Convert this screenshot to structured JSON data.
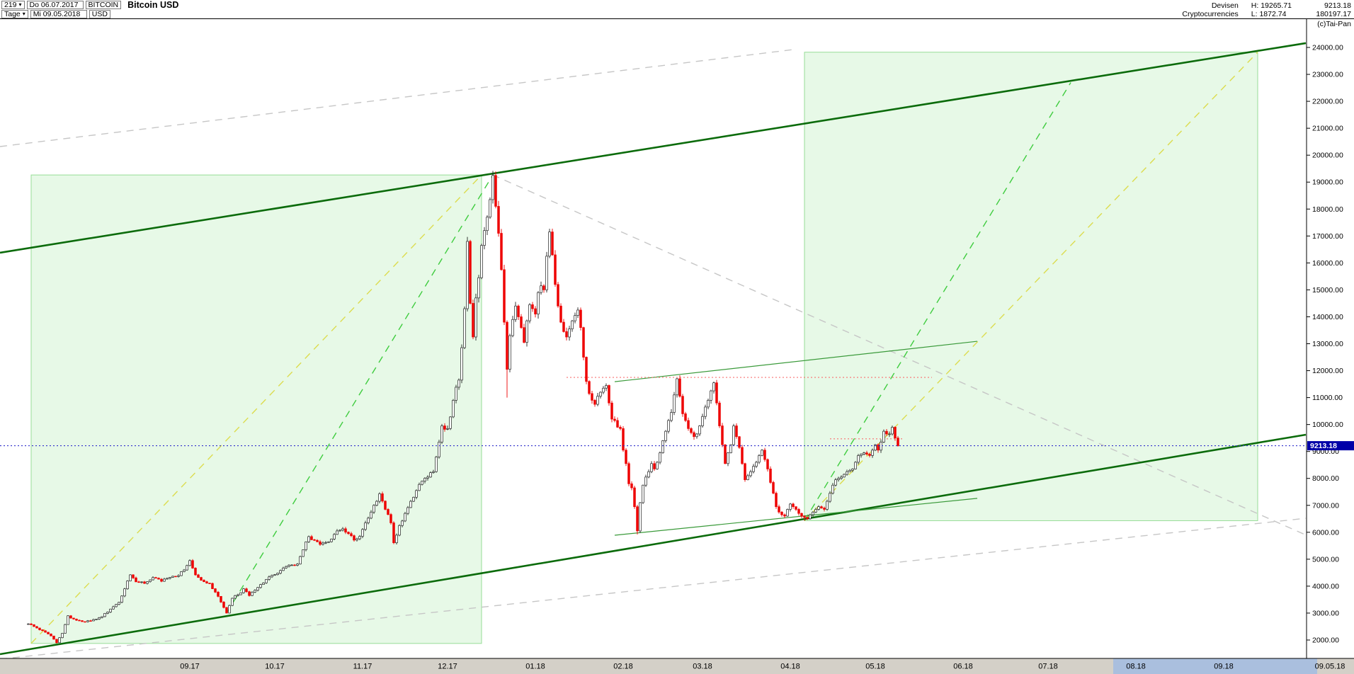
{
  "icons": {
    "dropdown_caret": "▾"
  },
  "header": {
    "bars_count": "219",
    "start_date": "Do 06.07.2017",
    "symbol": "BITCOIN",
    "title": "Bitcoin USD",
    "period": "Tage",
    "end_date": "Mi 09.05.2018",
    "currency": "USD",
    "category_line1": "Devisen",
    "category_line2": "Cryptocurrencies",
    "high_label": "H: 19265.71",
    "low_label": "L: 1872.74",
    "last_price": "9213.18",
    "secondary_value": "180197.17",
    "credit": "(c)Tai-Pan"
  },
  "time_axis": {
    "strip_color": "#d4d0c8",
    "end_label": "09.05.18",
    "highlight": {
      "from_day": 383,
      "to_day": 455,
      "color": "#aabfde"
    },
    "ticks": [
      {
        "label": "09.17",
        "day": 57
      },
      {
        "label": "10.17",
        "day": 87
      },
      {
        "label": "11.17",
        "day": 118
      },
      {
        "label": "12.17",
        "day": 148
      },
      {
        "label": "01.18",
        "day": 179
      },
      {
        "label": "02.18",
        "day": 210
      },
      {
        "label": "03.18",
        "day": 238
      },
      {
        "label": "04.18",
        "day": 269
      },
      {
        "label": "05.18",
        "day": 299
      },
      {
        "label": "06.18",
        "day": 330
      },
      {
        "label": "07.18",
        "day": 360
      },
      {
        "label": "08.18",
        "day": 391
      },
      {
        "label": "09.18",
        "day": 422
      }
    ]
  },
  "chart_data": {
    "type": "candlestick",
    "title": "Bitcoin USD",
    "period": "daily",
    "x_start_date": "06.07.2017",
    "x_end_date": "09.05.2018",
    "days": 307,
    "high": 19265.71,
    "low": 1872.74,
    "last": 9213.18,
    "last_label": "9213.18",
    "y_axis": {
      "min": 2000,
      "max": 24000,
      "step": 1000,
      "decimals": 2
    },
    "colors": {
      "up": "#ffffff",
      "up_border": "#222222",
      "down": "#ee0000",
      "channel_green": "#0b6b0b",
      "thin_green": "#3a9a3a",
      "dash_green": "#3ecc3e",
      "dash_yellow": "#dcdc4e",
      "dash_gray": "#c6c6c6",
      "dash_red": "#f87070",
      "last_price_line": "#3030cc",
      "price_tag_bg": "#0000a8",
      "box_fill": "rgba(170,235,170,0.28)",
      "box_border": "#97dd97"
    },
    "keypoints": [
      [
        0,
        2600
      ],
      [
        2,
        2500
      ],
      [
        4,
        2380
      ],
      [
        6,
        2290
      ],
      [
        8,
        2150
      ],
      [
        10,
        1900
      ],
      [
        12,
        2250
      ],
      [
        14,
        2900
      ],
      [
        16,
        2780
      ],
      [
        18,
        2720
      ],
      [
        20,
        2680
      ],
      [
        23,
        2760
      ],
      [
        26,
        2870
      ],
      [
        29,
        3150
      ],
      [
        32,
        3400
      ],
      [
        34,
        3900
      ],
      [
        36,
        4420
      ],
      [
        38,
        4160
      ],
      [
        41,
        4100
      ],
      [
        44,
        4320
      ],
      [
        47,
        4180
      ],
      [
        50,
        4330
      ],
      [
        53,
        4390
      ],
      [
        55,
        4600
      ],
      [
        57,
        4950
      ],
      [
        59,
        4420
      ],
      [
        61,
        4220
      ],
      [
        64,
        4100
      ],
      [
        67,
        3620
      ],
      [
        70,
        3000
      ],
      [
        72,
        3550
      ],
      [
        74,
        3680
      ],
      [
        76,
        3900
      ],
      [
        78,
        3650
      ],
      [
        81,
        3950
      ],
      [
        84,
        4250
      ],
      [
        86,
        4400
      ],
      [
        89,
        4580
      ],
      [
        92,
        4780
      ],
      [
        95,
        4820
      ],
      [
        97,
        5350
      ],
      [
        99,
        5840
      ],
      [
        101,
        5700
      ],
      [
        103,
        5550
      ],
      [
        105,
        5620
      ],
      [
        107,
        5750
      ],
      [
        109,
        6050
      ],
      [
        111,
        6130
      ],
      [
        113,
        5950
      ],
      [
        115,
        5710
      ],
      [
        117,
        5850
      ],
      [
        119,
        6350
      ],
      [
        121,
        6750
      ],
      [
        123,
        7150
      ],
      [
        124,
        7430
      ],
      [
        126,
        6850
      ],
      [
        128,
        6350
      ],
      [
        129,
        5610
      ],
      [
        131,
        6250
      ],
      [
        133,
        6700
      ],
      [
        135,
        7150
      ],
      [
        137,
        7550
      ],
      [
        139,
        7900
      ],
      [
        141,
        8050
      ],
      [
        143,
        8250
      ],
      [
        145,
        9350
      ],
      [
        146,
        9950
      ],
      [
        148,
        9850
      ],
      [
        150,
        10900
      ],
      [
        152,
        11650
      ],
      [
        154,
        14300
      ],
      [
        155,
        16800
      ],
      [
        156,
        14500
      ],
      [
        157,
        13250
      ],
      [
        158,
        14700
      ],
      [
        159,
        15450
      ],
      [
        160,
        16650
      ],
      [
        161,
        17200
      ],
      [
        162,
        17700
      ],
      [
        163,
        18350
      ],
      [
        164,
        19250
      ],
      [
        165,
        18100
      ],
      [
        166,
        17100
      ],
      [
        167,
        15750
      ],
      [
        168,
        13800
      ],
      [
        169,
        12050
      ],
      [
        170,
        13300
      ],
      [
        171,
        13900
      ],
      [
        172,
        14400
      ],
      [
        173,
        14000
      ],
      [
        174,
        13600
      ],
      [
        175,
        13050
      ],
      [
        176,
        13850
      ],
      [
        177,
        14450
      ],
      [
        178,
        14300
      ],
      [
        179,
        14100
      ],
      [
        180,
        14900
      ],
      [
        181,
        15150
      ],
      [
        182,
        15000
      ],
      [
        183,
        16250
      ],
      [
        184,
        17150
      ],
      [
        185,
        16300
      ],
      [
        186,
        15200
      ],
      [
        187,
        14400
      ],
      [
        188,
        13800
      ],
      [
        189,
        13450
      ],
      [
        190,
        13250
      ],
      [
        191,
        13550
      ],
      [
        192,
        13850
      ],
      [
        193,
        14050
      ],
      [
        194,
        14250
      ],
      [
        195,
        13600
      ],
      [
        196,
        12500
      ],
      [
        197,
        11600
      ],
      [
        198,
        11150
      ],
      [
        199,
        10900
      ],
      [
        200,
        10750
      ],
      [
        201,
        11050
      ],
      [
        202,
        11200
      ],
      [
        203,
        11350
      ],
      [
        204,
        11450
      ],
      [
        205,
        10800
      ],
      [
        206,
        10200
      ],
      [
        207,
        10150
      ],
      [
        209,
        9850
      ],
      [
        210,
        9050
      ],
      [
        211,
        8550
      ],
      [
        212,
        7800
      ],
      [
        213,
        7650
      ],
      [
        214,
        6950
      ],
      [
        215,
        6050
      ],
      [
        216,
        7100
      ],
      [
        217,
        7750
      ],
      [
        218,
        8050
      ],
      [
        219,
        8250
      ],
      [
        220,
        8550
      ],
      [
        221,
        8350
      ],
      [
        222,
        8600
      ],
      [
        223,
        8950
      ],
      [
        224,
        9400
      ],
      [
        225,
        9750
      ],
      [
        226,
        10150
      ],
      [
        227,
        10450
      ],
      [
        228,
        11100
      ],
      [
        229,
        11700
      ],
      [
        230,
        11050
      ],
      [
        231,
        10400
      ],
      [
        232,
        10150
      ],
      [
        233,
        9850
      ],
      [
        234,
        9700
      ],
      [
        235,
        9550
      ],
      [
        236,
        9650
      ],
      [
        237,
        9950
      ],
      [
        238,
        10300
      ],
      [
        239,
        10650
      ],
      [
        240,
        10900
      ],
      [
        241,
        11250
      ],
      [
        242,
        11550
      ],
      [
        243,
        10800
      ],
      [
        244,
        9950
      ],
      [
        245,
        9250
      ],
      [
        246,
        8550
      ],
      [
        247,
        8950
      ],
      [
        248,
        9250
      ],
      [
        249,
        9950
      ],
      [
        250,
        9550
      ],
      [
        251,
        9150
      ],
      [
        252,
        8550
      ],
      [
        253,
        7950
      ],
      [
        254,
        8100
      ],
      [
        255,
        8250
      ],
      [
        256,
        8450
      ],
      [
        257,
        8600
      ],
      [
        258,
        8850
      ],
      [
        259,
        9050
      ],
      [
        260,
        8700
      ],
      [
        261,
        8350
      ],
      [
        262,
        7850
      ],
      [
        263,
        7450
      ],
      [
        264,
        6950
      ],
      [
        265,
        6750
      ],
      [
        266,
        6650
      ],
      [
        267,
        6600
      ],
      [
        268,
        6850
      ],
      [
        269,
        7050
      ],
      [
        270,
        6950
      ],
      [
        271,
        6850
      ],
      [
        272,
        6700
      ],
      [
        273,
        6600
      ],
      [
        274,
        6550
      ],
      [
        275,
        6500
      ],
      [
        276,
        6650
      ],
      [
        277,
        6750
      ],
      [
        278,
        6850
      ],
      [
        279,
        6950
      ],
      [
        280,
        6900
      ],
      [
        281,
        6850
      ],
      [
        282,
        7150
      ],
      [
        283,
        7450
      ],
      [
        284,
        7750
      ],
      [
        285,
        7950
      ],
      [
        286,
        8000
      ],
      [
        287,
        8050
      ],
      [
        288,
        8150
      ],
      [
        289,
        8250
      ],
      [
        290,
        8300
      ],
      [
        291,
        8350
      ],
      [
        292,
        8600
      ],
      [
        293,
        8850
      ],
      [
        294,
        8900
      ],
      [
        295,
        8950
      ],
      [
        296,
        8900
      ],
      [
        297,
        8850
      ],
      [
        298,
        9050
      ],
      [
        299,
        9250
      ],
      [
        300,
        9050
      ],
      [
        301,
        9350
      ],
      [
        302,
        9750
      ],
      [
        303,
        9650
      ],
      [
        304,
        9650
      ],
      [
        305,
        9900
      ],
      [
        306,
        9500
      ],
      [
        307,
        9213.18
      ]
    ],
    "wick_overrides": [
      {
        "day": 10,
        "low": 1872.74
      },
      {
        "day": 164,
        "high": 19265.71
      },
      {
        "day": 169,
        "low": 11000
      },
      {
        "day": 215,
        "low": 5920
      },
      {
        "day": 274,
        "low": 6430
      }
    ],
    "overlays": [
      {
        "name": "projection-box-1",
        "kind": "box",
        "points": [
          [
            1,
            1872.74
          ],
          [
            160,
            19265.71
          ]
        ]
      },
      {
        "name": "projection-box-2",
        "kind": "box",
        "points": [
          [
            274,
            6430
          ],
          [
            434,
            23823
          ]
        ]
      },
      {
        "name": "gray-trendline-upper",
        "kind": "line",
        "style": "dash",
        "color": "dash_gray",
        "width": 1.4,
        "points": [
          [
            -10,
            20320
          ],
          [
            270,
            23920
          ]
        ]
      },
      {
        "name": "gray-trendline-lower",
        "kind": "line",
        "style": "dash",
        "color": "dash_gray",
        "width": 1.4,
        "points": [
          [
            -10,
            1290
          ],
          [
            451,
            6520
          ]
        ]
      },
      {
        "name": "gray-trendline-falling",
        "kind": "line",
        "style": "dash",
        "color": "dash_gray",
        "width": 1.4,
        "points": [
          [
            164,
            19265
          ],
          [
            451,
            5900
          ]
        ]
      },
      {
        "name": "yellow-trendline-1",
        "kind": "line",
        "style": "dash",
        "color": "dash_yellow",
        "width": 1.4,
        "points": [
          [
            1,
            1875
          ],
          [
            160,
            19265
          ]
        ]
      },
      {
        "name": "yellow-trendline-2",
        "kind": "line",
        "style": "dash",
        "color": "dash_yellow",
        "width": 1.4,
        "points": [
          [
            274,
            6430
          ],
          [
            434,
            23823
          ]
        ]
      },
      {
        "name": "green-trendline-1",
        "kind": "line",
        "style": "dash",
        "color": "dash_green",
        "width": 1.4,
        "points": [
          [
            70,
            3000
          ],
          [
            164,
            19265
          ]
        ]
      },
      {
        "name": "green-trendline-2",
        "kind": "line",
        "style": "dash",
        "color": "dash_green",
        "width": 1.4,
        "points": [
          [
            274,
            6430
          ],
          [
            368,
            22695
          ]
        ]
      },
      {
        "name": "channel-upper",
        "kind": "line",
        "style": "solid",
        "color": "channel_green",
        "width": 2.6,
        "points": [
          [
            -10,
            16380
          ],
          [
            451,
            24160
          ]
        ]
      },
      {
        "name": "channel-lower",
        "kind": "line",
        "style": "solid",
        "color": "channel_green",
        "width": 2.6,
        "points": [
          [
            -10,
            1474
          ],
          [
            451,
            9623
          ]
        ]
      },
      {
        "name": "minor-channel-upper",
        "kind": "line",
        "style": "solid",
        "color": "thin_green",
        "width": 1.2,
        "points": [
          [
            207,
            11590
          ],
          [
            335,
            13090
          ]
        ]
      },
      {
        "name": "minor-channel-lower",
        "kind": "line",
        "style": "solid",
        "color": "thin_green",
        "width": 1.2,
        "points": [
          [
            207,
            5890
          ],
          [
            335,
            7260
          ]
        ]
      },
      {
        "name": "resistance-11750",
        "kind": "line",
        "style": "dot",
        "color": "dash_red",
        "width": 1.1,
        "points": [
          [
            190,
            11750
          ],
          [
            319,
            11750
          ]
        ]
      },
      {
        "name": "resistance-9470",
        "kind": "line",
        "style": "dot",
        "color": "dash_red",
        "width": 1.1,
        "points": [
          [
            283,
            9470
          ],
          [
            309,
            9470
          ]
        ]
      },
      {
        "name": "last-price-line",
        "kind": "line",
        "style": "dot",
        "color": "last_price_line",
        "width": 1.2,
        "above": true,
        "points": [
          [
            -10,
            9213.18
          ],
          [
            451,
            9213.18
          ]
        ]
      }
    ]
  }
}
